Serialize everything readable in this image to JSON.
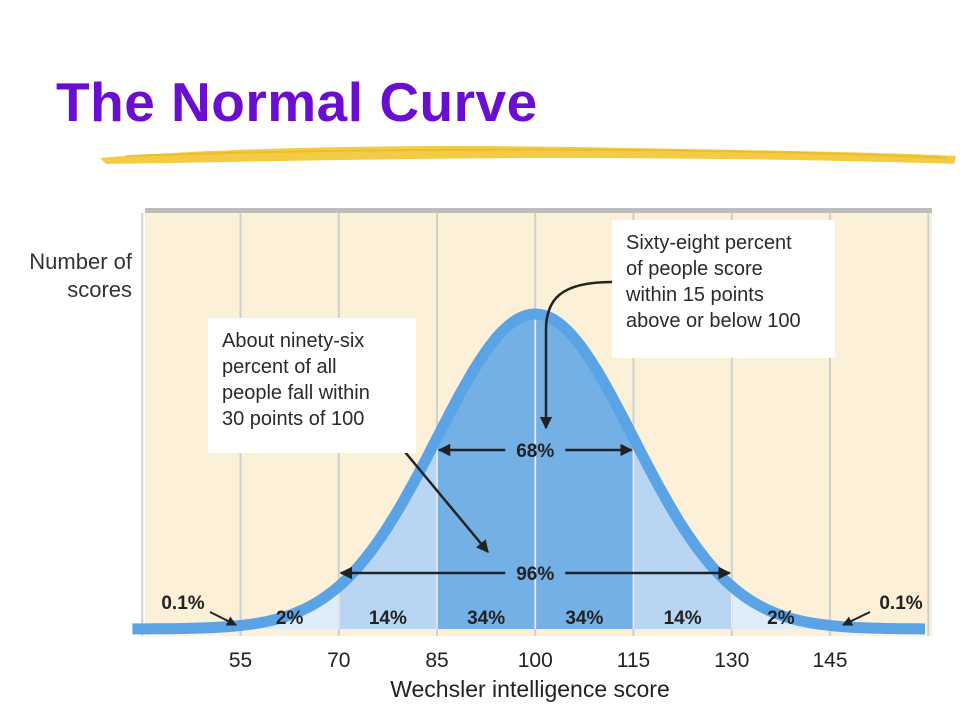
{
  "slide": {
    "title": "The Normal Curve"
  },
  "colors": {
    "title": "#6a0fd0",
    "underline": "#f2c531",
    "background_panel": "#fcf0d8",
    "curve": "#5aa3e4",
    "band_inner": "#72b0e6",
    "band_middle": "#b8d6f4",
    "band_outer": "#dfecfa"
  },
  "chart_data": {
    "type": "area",
    "xlabel": "Wechsler intelligence score",
    "ylabel": "Number of scores",
    "xlim": [
      40,
      160
    ],
    "x_ticks": [
      55,
      70,
      85,
      100,
      115,
      130,
      145
    ],
    "tick_labels": [
      "55",
      "70",
      "85",
      "100",
      "115",
      "130",
      "145"
    ],
    "distribution": {
      "mean": 100,
      "sd": 15
    },
    "bands": [
      {
        "from": 85,
        "to": 100,
        "percent_label": "34%"
      },
      {
        "from": 100,
        "to": 115,
        "percent_label": "34%"
      },
      {
        "from": 70,
        "to": 85,
        "percent_label": "14%"
      },
      {
        "from": 115,
        "to": 130,
        "percent_label": "14%"
      },
      {
        "from": 55,
        "to": 70,
        "percent_label": "2%"
      },
      {
        "from": 130,
        "to": 145,
        "percent_label": "2%"
      }
    ],
    "tail_labels": [
      "0.1%",
      "0.1%"
    ],
    "range_labels": [
      {
        "from": 85,
        "to": 115,
        "label": "68%"
      },
      {
        "from": 70,
        "to": 130,
        "label": "96%"
      }
    ],
    "annotations": [
      {
        "lines": [
          "Sixty-eight percent",
          "of people score",
          "within 15 points",
          "above or below 100"
        ]
      },
      {
        "lines": [
          "About ninety-six",
          "percent of all",
          "people fall within",
          "30 points of 100"
        ]
      }
    ]
  }
}
